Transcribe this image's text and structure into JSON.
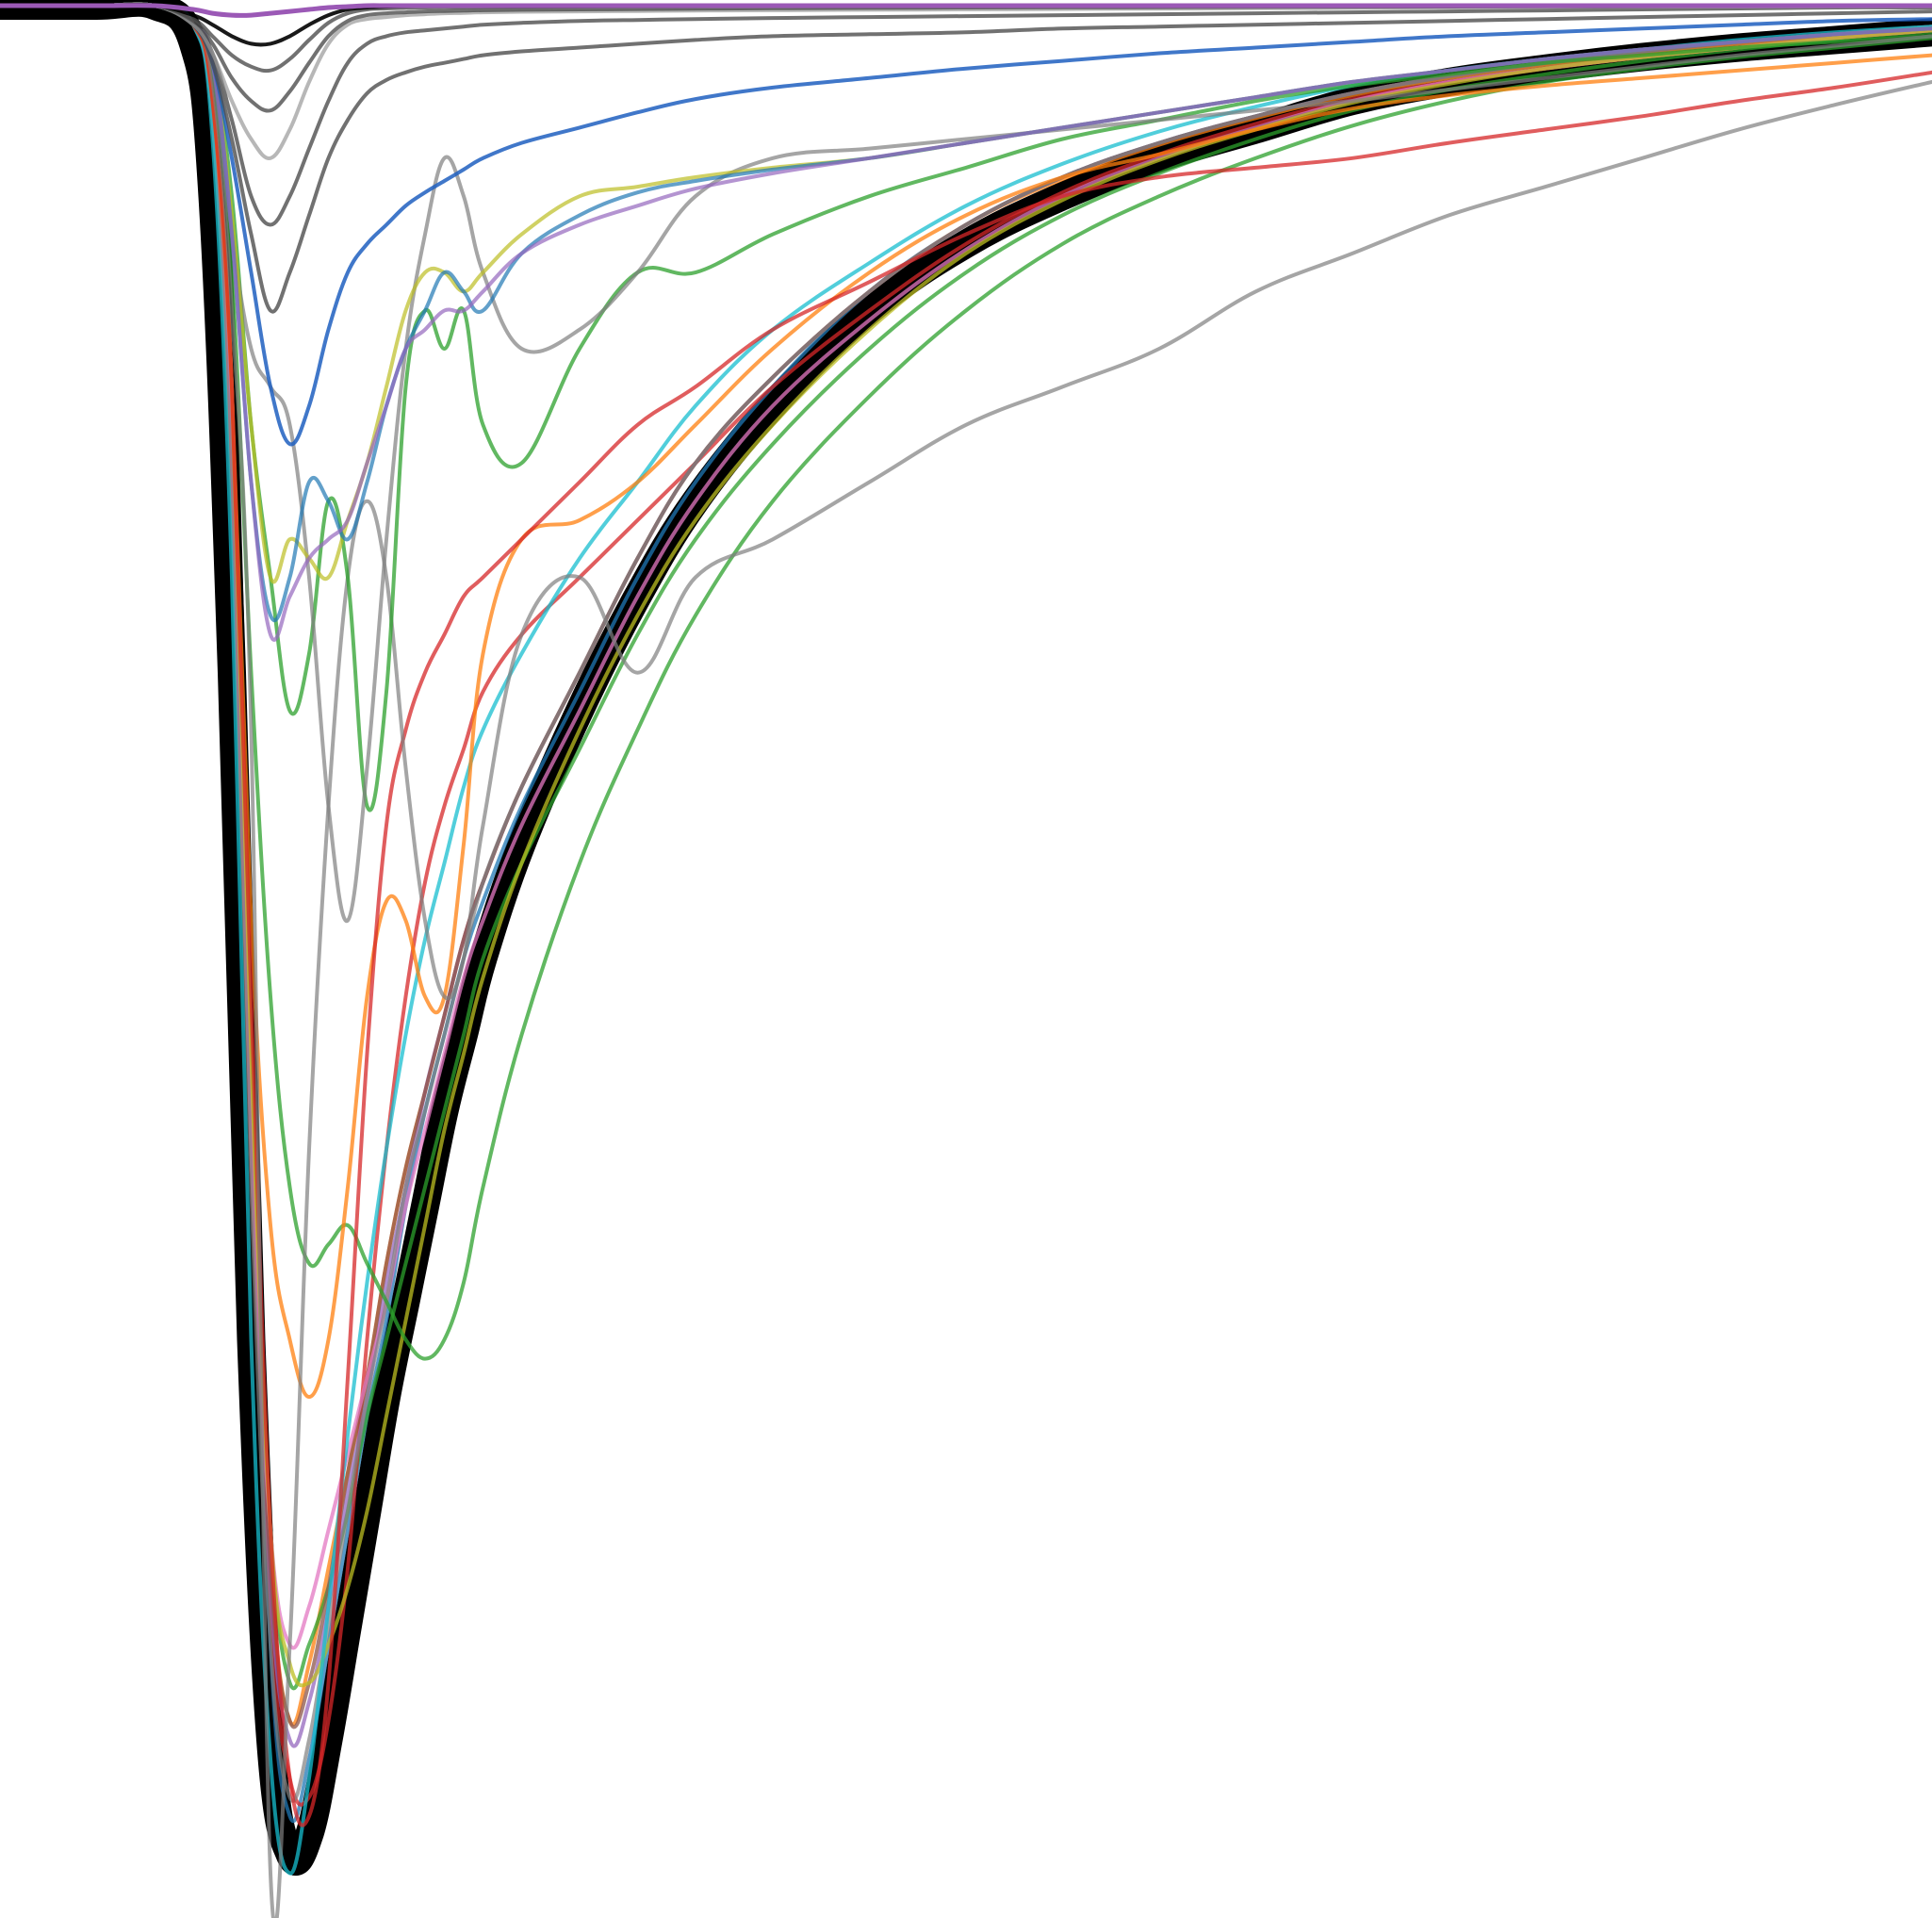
{
  "chart_data": {
    "type": "line",
    "title": "",
    "xlabel": "",
    "ylabel": "",
    "grid": false,
    "legend": "none",
    "axes_visible": false,
    "xlim": [
      0,
      100
    ],
    "ylim": [
      -100,
      0
    ],
    "x": [
      0,
      5,
      8,
      10,
      11,
      12,
      13,
      14,
      15,
      16,
      17,
      18,
      19,
      20,
      21,
      22,
      23,
      24,
      25,
      27,
      30,
      33,
      36,
      40,
      45,
      50,
      55,
      60,
      65,
      70,
      75,
      80,
      85,
      90,
      95,
      100
    ],
    "series": [
      {
        "color": "#000000",
        "opacity": 1.0,
        "width": 30,
        "values": [
          0,
          0,
          0,
          -2,
          -10,
          -35,
          -70,
          -91,
          -97,
          -96,
          -91,
          -85,
          -79,
          -73,
          -68,
          -63,
          -58,
          -54,
          -50,
          -44,
          -37,
          -31,
          -26,
          -21,
          -16,
          -12.5,
          -10,
          -8,
          -6.5,
          -5,
          -4,
          -3.3,
          -2.7,
          -2.2,
          -1.8,
          -1.4
        ]
      },
      {
        "color": "#000000",
        "opacity": 0.85,
        "width": 4,
        "values": [
          0,
          0,
          0,
          -1,
          -4,
          -15,
          -50,
          -85,
          -96,
          -95,
          -90,
          -84,
          -78,
          -72,
          -67,
          -62,
          -57,
          -53,
          -49,
          -43,
          -36,
          -30,
          -25,
          -20,
          -15.5,
          -12,
          -9.5,
          -7.6,
          -6.2,
          -4.8,
          -3.9,
          -3.2,
          -2.6,
          -2.1,
          -1.7,
          -1.3
        ]
      },
      {
        "color": "#1f77b4",
        "opacity": 0.75,
        "width": 4,
        "values": [
          0,
          0,
          0,
          -1,
          -5,
          -20,
          -55,
          -86,
          -95,
          -92,
          -86,
          -80,
          -74,
          -69,
          -63,
          -58,
          -54,
          -50,
          -47,
          -42,
          -36,
          -30,
          -25,
          -20,
          -15,
          -11.5,
          -9,
          -7.2,
          -5.8,
          -4.6,
          -3.8,
          -3.1,
          -2.5,
          -2,
          -1.6,
          -1.2
        ]
      },
      {
        "color": "#ff7f0e",
        "opacity": 0.75,
        "width": 4,
        "values": [
          0,
          0,
          0,
          -1,
          -6,
          -25,
          -60,
          -82,
          -90,
          -87,
          -82,
          -77,
          -72,
          -66,
          -61,
          -57,
          -53,
          -49,
          -46,
          -41,
          -35,
          -29,
          -24,
          -19.5,
          -15,
          -11.5,
          -9.1,
          -7.3,
          -5.9,
          -4.7,
          -3.8,
          -3.1,
          -2.5,
          -2,
          -1.6,
          -1.2
        ]
      },
      {
        "color": "#2ca02c",
        "opacity": 0.75,
        "width": 4,
        "values": [
          0,
          0,
          0,
          -1,
          -5,
          -22,
          -58,
          -80,
          -88,
          -86,
          -83,
          -79,
          -74,
          -70,
          -66,
          -62,
          -58,
          -54,
          -50,
          -45,
          -39,
          -33,
          -28,
          -23,
          -18,
          -14,
          -11,
          -8.8,
          -7,
          -5.5,
          -4.4,
          -3.6,
          -2.9,
          -2.3,
          -1.8,
          -1.4
        ]
      },
      {
        "color": "#d62728",
        "opacity": 0.75,
        "width": 4,
        "values": [
          0,
          0,
          0,
          -1,
          -5,
          -20,
          -55,
          -84,
          -93,
          -94,
          -90,
          -82,
          -70,
          -60,
          -52,
          -46,
          -42,
          -39,
          -36,
          -33,
          -30,
          -27,
          -24,
          -20,
          -16,
          -12.5,
          -9.8,
          -7.8,
          -6.2,
          -4.9,
          -4,
          -3.3,
          -2.7,
          -2.2,
          -1.7,
          -1.3
        ]
      },
      {
        "color": "#9467bd",
        "opacity": 0.75,
        "width": 4,
        "values": [
          0,
          0,
          0,
          -1,
          -5,
          -22,
          -58,
          -83,
          -91,
          -89,
          -84,
          -78,
          -73,
          -67,
          -62,
          -57,
          -53,
          -49,
          -46,
          -41,
          -35,
          -29,
          -24,
          -19.5,
          -15,
          -11.5,
          -9,
          -7.2,
          -5.8,
          -4.6,
          -3.7,
          -3,
          -2.4,
          -1.9,
          -1.5,
          -1.1
        ]
      },
      {
        "color": "#8c564b",
        "opacity": 0.75,
        "width": 4,
        "values": [
          0,
          0,
          0,
          -1,
          -5,
          -21,
          -57,
          -82,
          -90,
          -88,
          -83,
          -77,
          -72,
          -66,
          -61,
          -57,
          -53,
          -49,
          -46,
          -41,
          -35,
          -29,
          -24,
          -19.5,
          -15,
          -11.5,
          -9,
          -7.2,
          -5.8,
          -4.6,
          -3.7,
          -3,
          -2.4,
          -1.9,
          -1.5,
          -1.1
        ]
      },
      {
        "color": "#e377c2",
        "opacity": 0.75,
        "width": 4,
        "values": [
          0,
          0,
          0,
          -1,
          -6,
          -24,
          -60,
          -80,
          -86,
          -84,
          -80,
          -76,
          -72,
          -68,
          -63,
          -59,
          -55,
          -51,
          -48,
          -43,
          -37,
          -31,
          -26,
          -21,
          -16.5,
          -12.8,
          -10,
          -8,
          -6.4,
          -5,
          -4,
          -3.3,
          -2.7,
          -2.2,
          -1.7,
          -1.3
        ]
      },
      {
        "color": "#7f7f7f",
        "opacity": 0.7,
        "width": 4,
        "values": [
          0,
          0,
          0,
          -1,
          -6,
          -26,
          -62,
          -86,
          -94,
          -91,
          -85,
          -79,
          -73,
          -68,
          -62,
          -58,
          -54,
          -50,
          -46,
          -41,
          -35,
          -29,
          -24,
          -19.5,
          -15,
          -11.5,
          -9,
          -7.2,
          -5.8,
          -4.6,
          -3.7,
          -3,
          -2.4,
          -1.9,
          -1.5,
          -1.1
        ]
      },
      {
        "color": "#bcbd22",
        "opacity": 0.75,
        "width": 4,
        "values": [
          0,
          0,
          0,
          -1,
          -5,
          -20,
          -55,
          -80,
          -87,
          -88,
          -86,
          -83,
          -79,
          -74,
          -69,
          -64,
          -59,
          -55,
          -51,
          -45,
          -38,
          -32,
          -27,
          -22,
          -17,
          -13,
          -10.2,
          -8.1,
          -6.5,
          -5.1,
          -4.1,
          -3.3,
          -2.7,
          -2.2,
          -1.7,
          -1.3
        ]
      },
      {
        "color": "#17becf",
        "opacity": 0.75,
        "width": 4,
        "values": [
          0,
          0,
          0,
          -1,
          -7,
          -30,
          -70,
          -92,
          -98,
          -93,
          -84,
          -75,
          -67,
          -60,
          -54,
          -49,
          -45,
          -41,
          -38,
          -34,
          -29,
          -25,
          -21,
          -17,
          -13.5,
          -10.5,
          -8.3,
          -6.6,
          -5.3,
          -4.2,
          -3.4,
          -2.8,
          -2.3,
          -1.8,
          -1.4,
          -1.1
        ]
      },
      {
        "color": "#2ca02c",
        "opacity": 0.75,
        "width": 4,
        "values": [
          0,
          0,
          0,
          -1,
          -4,
          -14,
          -35,
          -52,
          -62,
          -66,
          -65,
          -64,
          -66,
          -68,
          -70,
          -71,
          -70,
          -67,
          -62,
          -54,
          -45,
          -38,
          -32,
          -26,
          -20.5,
          -16,
          -12.5,
          -10,
          -8,
          -6.3,
          -5,
          -4,
          -3.3,
          -2.7,
          -2.2,
          -1.7
        ]
      },
      {
        "color": "#ff7f0e",
        "opacity": 0.75,
        "width": 4,
        "values": [
          0,
          0,
          0,
          -1,
          -5,
          -20,
          -48,
          -64,
          -70,
          -73,
          -70,
          -62,
          -52,
          -47,
          -48,
          -52,
          -52,
          -44,
          -34,
          -28,
          -27,
          -25,
          -22,
          -18,
          -14,
          -11,
          -9,
          -7.8,
          -6.5,
          -5.4,
          -4.7,
          -4.2,
          -3.8,
          -3.4,
          -3,
          -2.6
        ]
      },
      {
        "color": "#d62728",
        "opacity": 0.75,
        "width": 4,
        "values": [
          0,
          0,
          0,
          -1,
          -5,
          -20,
          -52,
          -80,
          -93,
          -95,
          -88,
          -72,
          -55,
          -43,
          -38,
          -35,
          -33,
          -31,
          -30,
          -28,
          -25,
          -22,
          -20,
          -17,
          -14.5,
          -12,
          -10,
          -9,
          -8.5,
          -8,
          -7.2,
          -6.5,
          -5.8,
          -5,
          -4.3,
          -3.5
        ]
      },
      {
        "color": "#7f7f7f",
        "opacity": 0.7,
        "width": 4,
        "values": [
          0,
          0,
          0,
          -1,
          -4,
          -16,
          -38,
          -98,
          -86,
          -60,
          -42,
          -30,
          -26,
          -30,
          -40,
          -48,
          -52,
          -50,
          -43,
          -33,
          -30,
          -35,
          -30,
          -28,
          -25,
          -22,
          -20,
          -18,
          -15,
          -13,
          -11,
          -9.5,
          -8,
          -6.5,
          -5.2,
          -4
        ]
      },
      {
        "color": "#2ca02c",
        "opacity": 0.75,
        "width": 4,
        "values": [
          0,
          0,
          0,
          -1,
          -3,
          -10,
          -22,
          -30,
          -37,
          -34,
          -26,
          -30,
          -42,
          -36,
          -20,
          -16,
          -18,
          -16,
          -22,
          -24,
          -18,
          -14,
          -14,
          -12,
          -10,
          -8.5,
          -7,
          -6,
          -5,
          -4.2,
          -3.6,
          -3,
          -2.6,
          -2.2,
          -1.9,
          -1.6
        ]
      },
      {
        "color": "#7f7f7f",
        "opacity": 0.7,
        "width": 4,
        "values": [
          0,
          0,
          0,
          -1,
          -3,
          -12,
          -18,
          -20,
          -22,
          -30,
          -42,
          -48,
          -40,
          -28,
          -18,
          -12,
          -8,
          -10,
          -14,
          -18,
          -17,
          -14,
          -10,
          -8,
          -7.5,
          -7,
          -6.5,
          -6,
          -5.5,
          -5,
          -4.4,
          -3.8,
          -3.2,
          -2.6,
          -2.1,
          -1.6
        ]
      },
      {
        "color": "#bcbd22",
        "opacity": 0.7,
        "width": 4,
        "values": [
          0,
          0,
          0,
          -1,
          -3,
          -11,
          -22,
          -30,
          -28,
          -29,
          -30,
          -27,
          -24,
          -20,
          -16,
          -14,
          -14,
          -15,
          -14,
          -12,
          -10,
          -9.5,
          -9,
          -8.5,
          -8,
          -7.2,
          -6.4,
          -5.6,
          -4.8,
          -4,
          -3.4,
          -2.8,
          -2.3,
          -1.9,
          -1.5,
          -1.2
        ]
      },
      {
        "color": "#1f77b4",
        "opacity": 0.7,
        "width": 4,
        "values": [
          0,
          0,
          0,
          -1,
          -3,
          -12,
          -25,
          -32,
          -30,
          -25,
          -26,
          -28,
          -25,
          -21,
          -18,
          -16,
          -14,
          -15,
          -16,
          -13,
          -11,
          -9.8,
          -9.2,
          -8.6,
          -8,
          -7.2,
          -6.4,
          -5.6,
          -4.8,
          -4,
          -3.4,
          -2.8,
          -2.3,
          -1.9,
          -1.5,
          -1.2
        ]
      },
      {
        "color": "#9467bd",
        "opacity": 0.7,
        "width": 4,
        "values": [
          0,
          0,
          0,
          -1,
          -3,
          -12,
          -25,
          -33,
          -31,
          -29,
          -28,
          -27,
          -24,
          -21,
          -18,
          -17,
          -16,
          -16,
          -15,
          -13,
          -11.5,
          -10.5,
          -9.6,
          -8.8,
          -8,
          -7.2,
          -6.4,
          -5.6,
          -4.8,
          -4,
          -3.4,
          -2.8,
          -2.3,
          -1.9,
          -1.5,
          -1.2
        ]
      },
      {
        "color": "#1f5fbf",
        "opacity": 0.85,
        "width": 4,
        "values": [
          0,
          0,
          0,
          -1,
          -3,
          -8,
          -14,
          -20,
          -23,
          -21,
          -17,
          -14,
          -12.5,
          -11.5,
          -10.5,
          -9.8,
          -9.2,
          -8.6,
          -8,
          -7.2,
          -6.4,
          -5.6,
          -4.9,
          -4.3,
          -3.8,
          -3.3,
          -2.9,
          -2.5,
          -2.2,
          -1.9,
          -1.6,
          -1.4,
          -1.2,
          -1,
          -0.8,
          -0.7
        ]
      },
      {
        "color": "#4d4d4d",
        "opacity": 0.8,
        "width": 4,
        "values": [
          0,
          0,
          0,
          -1,
          -3,
          -7,
          -12,
          -16,
          -14,
          -11,
          -8,
          -6,
          -4.6,
          -3.9,
          -3.5,
          -3.2,
          -3,
          -2.8,
          -2.6,
          -2.4,
          -2.2,
          -2,
          -1.8,
          -1.6,
          -1.5,
          -1.4,
          -1.2,
          -1.1,
          -1,
          -0.9,
          -0.8,
          -0.7,
          -0.6,
          -0.5,
          -0.4,
          -0.3
        ]
      },
      {
        "color": "#4d4d4d",
        "opacity": 0.8,
        "width": 4,
        "values": [
          0,
          0,
          0,
          -1,
          -2.5,
          -6,
          -10,
          -11.5,
          -10,
          -7.5,
          -5,
          -3,
          -2,
          -1.6,
          -1.4,
          -1.3,
          -1.2,
          -1.1,
          -1,
          -0.9,
          -0.8,
          -0.75,
          -0.7,
          -0.65,
          -0.6,
          -0.55,
          -0.5,
          -0.45,
          -0.4,
          -0.35,
          -0.3,
          -0.25,
          -0.2,
          -0.15,
          -0.1,
          -0.1
        ]
      },
      {
        "color": "#999999",
        "opacity": 0.7,
        "width": 4,
        "values": [
          0,
          0,
          0,
          -1,
          -2.5,
          -5,
          -7,
          -8,
          -6.5,
          -4,
          -2,
          -1,
          -0.7,
          -0.6,
          -0.5,
          -0.45,
          -0.4,
          -0.38,
          -0.35,
          -0.32,
          -0.3,
          -0.28,
          -0.26,
          -0.24,
          -0.22,
          -0.2,
          -0.18,
          -0.16,
          -0.14,
          -0.12,
          -0.1,
          -0.08,
          -0.06,
          -0.05,
          -0.04,
          -0.03
        ]
      },
      {
        "color": "#4d4d4d",
        "opacity": 0.8,
        "width": 4,
        "values": [
          0,
          0,
          0,
          -0.8,
          -2,
          -3.8,
          -5,
          -5.5,
          -4.5,
          -3,
          -1.6,
          -0.8,
          -0.5,
          -0.4,
          -0.35,
          -0.3,
          -0.28,
          -0.26,
          -0.24,
          -0.22,
          -0.2,
          -0.18,
          -0.16,
          -0.14,
          -0.12,
          -0.1,
          -0.09,
          -0.08,
          -0.07,
          -0.06,
          -0.05,
          -0.04,
          -0.03,
          -0.02,
          -0.02,
          -0.01
        ]
      },
      {
        "color": "#4d4d4d",
        "opacity": 0.8,
        "width": 4,
        "values": [
          0,
          0,
          0,
          -0.7,
          -1.6,
          -2.6,
          -3.2,
          -3.4,
          -2.8,
          -1.8,
          -0.9,
          -0.4,
          -0.2,
          -0.15,
          -0.12,
          -0.1,
          -0.09,
          -0.08,
          -0.07,
          -0.06,
          -0.05,
          -0.04,
          -0.03,
          -0.02,
          -0.02,
          -0.01,
          -0.01,
          0,
          0,
          0,
          0,
          0,
          0,
          0,
          0,
          0
        ]
      },
      {
        "color": "#000000",
        "opacity": 0.9,
        "width": 4,
        "values": [
          0,
          0,
          0,
          -0.5,
          -1,
          -1.6,
          -2,
          -2,
          -1.6,
          -1,
          -0.5,
          -0.2,
          -0.1,
          -0.05,
          -0.03,
          -0.02,
          -0.01,
          0,
          0,
          0,
          0,
          0,
          0,
          0,
          0,
          0,
          0,
          0,
          0,
          0,
          0,
          0,
          0,
          0,
          0,
          0
        ]
      },
      {
        "color": "#9b59b6",
        "opacity": 1.0,
        "width": 5,
        "values": [
          0,
          0,
          0,
          -0.2,
          -0.4,
          -0.5,
          -0.5,
          -0.4,
          -0.3,
          -0.2,
          -0.1,
          -0.05,
          0,
          0,
          0,
          0,
          0,
          0,
          0,
          0,
          0,
          0,
          0,
          0,
          0,
          0,
          0,
          0,
          0,
          0,
          0,
          0,
          0,
          0,
          0,
          0
        ]
      }
    ]
  }
}
